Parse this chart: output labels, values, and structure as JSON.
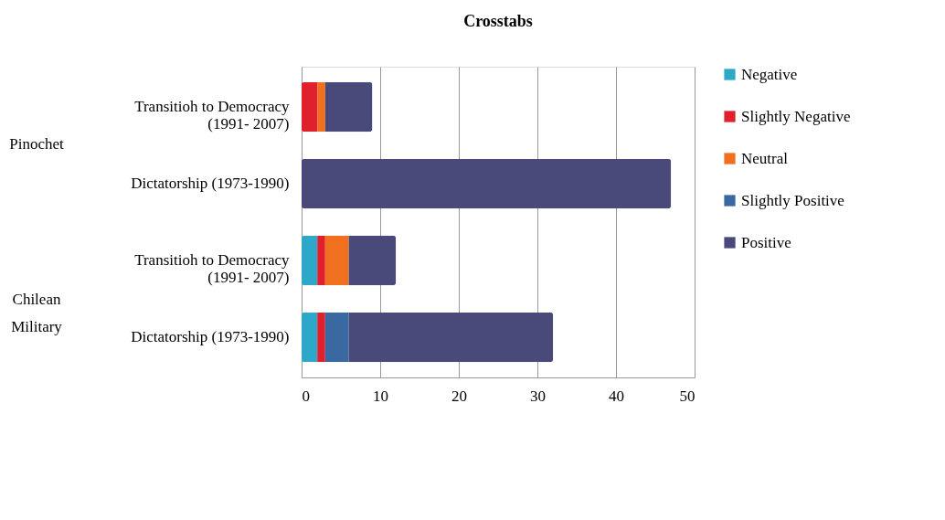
{
  "chart_data": {
    "type": "bar",
    "orientation": "horizontal",
    "stacked": true,
    "title": "Crosstabs",
    "categories": [
      "Transitioh to Democracy\n(1991- 2007)",
      "Dictatorship (1973-1990)",
      "Transitioh to Democracy\n(1991- 2007)",
      "Dictatorship (1973-1990)"
    ],
    "series": [
      {
        "name": "Negative",
        "color": "#2ea8c9",
        "values": [
          0,
          0,
          2,
          2
        ]
      },
      {
        "name": "Slightly Negative",
        "color": "#e0202c",
        "values": [
          2,
          0,
          1,
          1
        ]
      },
      {
        "name": "Neutral",
        "color": "#f07020",
        "values": [
          1,
          0,
          3,
          0
        ]
      },
      {
        "name": "Slightly Positive",
        "color": "#3a68a0",
        "values": [
          0,
          0,
          0,
          3
        ]
      },
      {
        "name": "Positive",
        "color": "#4a4a7a",
        "values": [
          6,
          47,
          6,
          26
        ]
      }
    ],
    "annotations": [
      "Pinochet",
      "Chilean\nMilitary"
    ],
    "xlim": [
      0,
      50
    ],
    "xticks": [
      0,
      10,
      20,
      30,
      40,
      50
    ],
    "grid": "x",
    "legend": "right"
  }
}
